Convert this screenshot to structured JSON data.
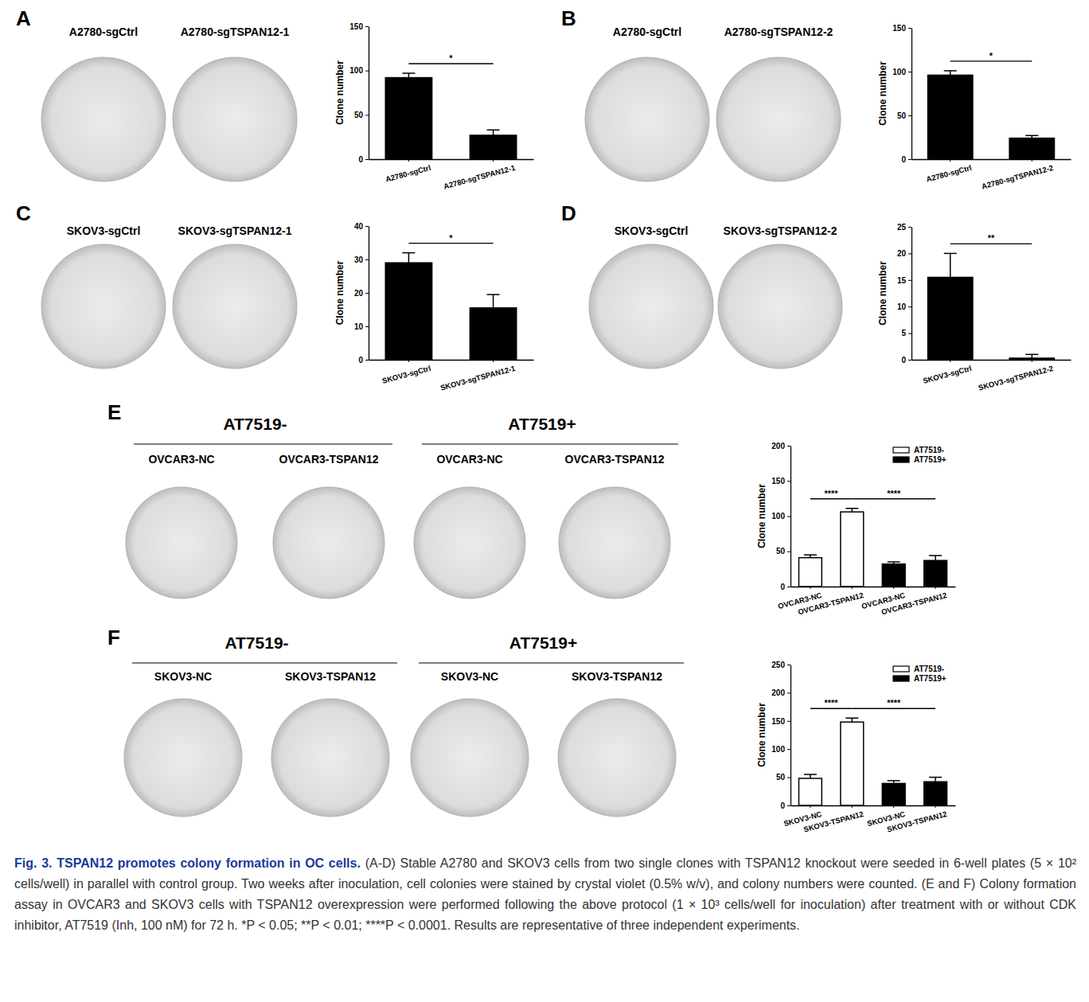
{
  "chart_data": [
    {
      "type": "bar",
      "y_label": "Clone number",
      "categories": [
        "A2780-sgCtrl",
        "A2780-sgTSPAN12-1"
      ],
      "values": [
        92,
        27
      ],
      "errors": [
        5,
        6
      ],
      "color": "#000000",
      "ylim": [
        0,
        150
      ],
      "yticks": [
        0,
        50,
        100,
        150
      ],
      "annotations": [
        {
          "between": [
            0,
            1
          ],
          "text": "*"
        }
      ]
    },
    {
      "type": "bar",
      "y_label": "Clone number",
      "categories": [
        "A2780-sgCtrl",
        "A2780-sgTSPAN12-2"
      ],
      "values": [
        96,
        24
      ],
      "errors": [
        5,
        3
      ],
      "color": "#000000",
      "ylim": [
        0,
        150
      ],
      "yticks": [
        0,
        50,
        100,
        150
      ],
      "annotations": [
        {
          "between": [
            0,
            1
          ],
          "text": "*"
        }
      ]
    },
    {
      "type": "bar",
      "y_label": "Clone number",
      "categories": [
        "SKOV3-sgCtrl",
        "SKOV3-sgTSPAN12-1"
      ],
      "values": [
        29,
        15.5
      ],
      "errors": [
        3,
        4
      ],
      "color": "#000000",
      "ylim": [
        0,
        40
      ],
      "yticks": [
        0,
        10,
        20,
        30,
        40
      ],
      "annotations": [
        {
          "between": [
            0,
            1
          ],
          "text": "*"
        }
      ]
    },
    {
      "type": "bar",
      "y_label": "Clone number",
      "categories": [
        "SKOV3-sgCtrl",
        "SKOV3-sgTSPAN12-2"
      ],
      "values": [
        15.5,
        0.3
      ],
      "errors": [
        4.5,
        0.7
      ],
      "color": "#000000",
      "ylim": [
        0,
        25
      ],
      "yticks": [
        0,
        5,
        10,
        15,
        20,
        25
      ],
      "annotations": [
        {
          "between": [
            0,
            1
          ],
          "text": "**"
        }
      ]
    },
    {
      "type": "bar",
      "y_label": "Clone number",
      "categories": [
        "OVCAR3-NC",
        "OVCAR3-TSPAN12",
        "OVCAR3-NC",
        "OVCAR3-TSPAN12"
      ],
      "series": [
        {
          "name": "AT7519-",
          "color": "#ffffff",
          "values": [
            41,
            106,
            null,
            null
          ],
          "errors": [
            4,
            5,
            null,
            null
          ]
        },
        {
          "name": "AT7519+",
          "color": "#000000",
          "values": [
            null,
            null,
            32,
            37
          ],
          "errors": [
            null,
            null,
            3,
            7
          ]
        }
      ],
      "ylim": [
        0,
        200
      ],
      "yticks": [
        0,
        50,
        100,
        150,
        200
      ],
      "legend": "top-right",
      "annotations": [
        {
          "between": [
            0,
            1
          ],
          "text": "****"
        },
        {
          "between": [
            1,
            3
          ],
          "text": "****"
        }
      ]
    },
    {
      "type": "bar",
      "y_label": "Clone number",
      "categories": [
        "SKOV3-NC",
        "SKOV3-TSPAN12",
        "SKOV3-NC",
        "SKOV3-TSPAN12"
      ],
      "series": [
        {
          "name": "AT7519-",
          "color": "#ffffff",
          "values": [
            48,
            148,
            null,
            null
          ],
          "errors": [
            7,
            7,
            null,
            null
          ]
        },
        {
          "name": "AT7519+",
          "color": "#000000",
          "values": [
            null,
            null,
            39,
            42
          ],
          "errors": [
            null,
            null,
            5,
            8
          ]
        }
      ],
      "ylim": [
        0,
        250
      ],
      "yticks": [
        0,
        50,
        100,
        150,
        200,
        250
      ],
      "legend": "top-right",
      "annotations": [
        {
          "between": [
            0,
            1
          ],
          "text": "****"
        },
        {
          "between": [
            1,
            3
          ],
          "text": "****"
        }
      ]
    }
  ],
  "figure": {
    "panels": [
      {
        "letter": "A",
        "groups": [
          {
            "dish_labels": [
              "A2780-sgCtrl",
              "A2780-sgTSPAN12-1"
            ]
          }
        ]
      },
      {
        "letter": "B",
        "groups": [
          {
            "dish_labels": [
              "A2780-sgCtrl",
              "A2780-sgTSPAN12-2"
            ]
          }
        ]
      },
      {
        "letter": "C",
        "groups": [
          {
            "dish_labels": [
              "SKOV3-sgCtrl",
              "SKOV3-sgTSPAN12-1"
            ]
          }
        ]
      },
      {
        "letter": "D",
        "groups": [
          {
            "dish_labels": [
              "SKOV3-sgCtrl",
              "SKOV3-sgTSPAN12-2"
            ]
          }
        ]
      },
      {
        "letter": "E",
        "groups": [
          {
            "header": "AT7519-",
            "dish_labels": [
              "OVCAR3-NC",
              "OVCAR3-TSPAN12"
            ]
          },
          {
            "header": "AT7519+",
            "dish_labels": [
              "OVCAR3-NC",
              "OVCAR3-TSPAN12"
            ]
          }
        ]
      },
      {
        "letter": "F",
        "groups": [
          {
            "header": "AT7519-",
            "dish_labels": [
              "SKOV3-NC",
              "SKOV3-TSPAN12"
            ]
          },
          {
            "header": "AT7519+",
            "dish_labels": [
              "SKOV3-NC",
              "SKOV3-TSPAN12"
            ]
          }
        ]
      }
    ],
    "caption": {
      "title": "Fig. 3. TSPAN12 promotes colony formation in OC cells.",
      "body": "(A-D) Stable A2780 and SKOV3 cells from two single clones with TSPAN12 knockout were seeded in 6-well plates (5 × 10² cells/well) in parallel with control group. Two weeks after inoculation, cell colonies were stained by crystal violet (0.5% w/v), and colony numbers were counted. (E and F) Colony formation assay in OVCAR3 and SKOV3 cells with TSPAN12 overexpression were performed following the above protocol (1 × 10³ cells/well for inoculation) after treatment with or without CDK inhibitor, AT7519 (Inh, 100 nM) for 72 h. *P < 0.05; **P < 0.01; ****P < 0.0001. Results are representative of three independent experiments."
    }
  }
}
